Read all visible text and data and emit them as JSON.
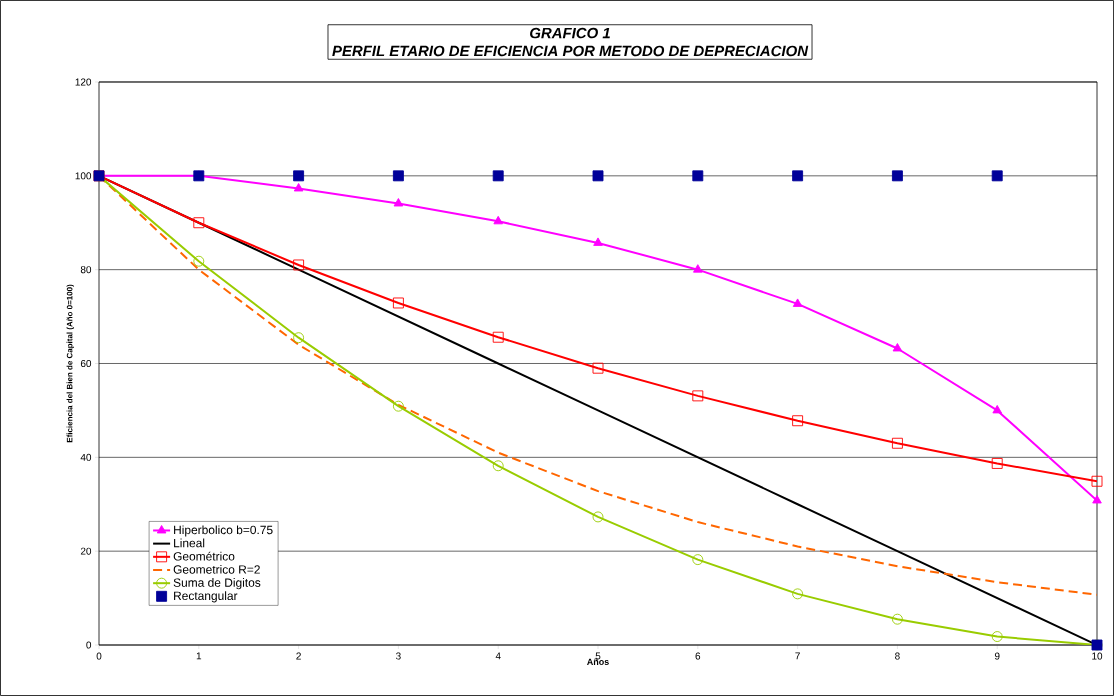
{
  "chart_data": {
    "type": "line",
    "title": "GRAFICO 1",
    "subtitle": "PERFIL ETARIO DE EFICIENCIA POR METODO DE DEPRECIACION",
    "xlabel": "Años",
    "ylabel": "Eficiencia del Bien de Capital (Año 0=100)",
    "x": [
      0,
      1,
      2,
      3,
      4,
      5,
      6,
      7,
      8,
      9,
      10
    ],
    "series": [
      {
        "name": "Hiperbolico b=0.75",
        "color": "#ff00ff",
        "marker": "triangle",
        "values": [
          100,
          100,
          97.3,
          94.1,
          90.3,
          85.7,
          80,
          72.7,
          63.2,
          50,
          30.8
        ]
      },
      {
        "name": "Lineal",
        "color": "#000000",
        "values": [
          100,
          90,
          80,
          70,
          60,
          50,
          40,
          30,
          20,
          10,
          0
        ]
      },
      {
        "name": "Geométrico",
        "color": "#ff0000",
        "marker": "square",
        "values": [
          100,
          90,
          81,
          72.9,
          65.6,
          59,
          53.1,
          47.8,
          43,
          38.7,
          34.9
        ]
      },
      {
        "name": "Geometrico R=2",
        "color": "#ff6600",
        "line_style": "dashed",
        "values": [
          100,
          80,
          64,
          51.2,
          41,
          32.8,
          26.2,
          21,
          16.8,
          13.4,
          10.7
        ]
      },
      {
        "name": "Suma de Digitos",
        "color": "#99cc00",
        "marker": "circle",
        "values": [
          100,
          81.8,
          65.5,
          50.9,
          38.2,
          27.3,
          18.2,
          10.9,
          5.5,
          1.8,
          0
        ]
      },
      {
        "name": "Rectangular",
        "type": "scatter",
        "color": "#000099",
        "marker": "square",
        "values": [
          100,
          100,
          100,
          100,
          100,
          100,
          100,
          100,
          100,
          100,
          0
        ]
      }
    ],
    "xlim": [
      0,
      10
    ],
    "xticks": [
      0,
      1,
      2,
      3,
      4,
      5,
      6,
      7,
      8,
      9,
      10
    ],
    "ylim": [
      0,
      120
    ],
    "yticks": [
      0,
      20,
      40,
      60,
      80,
      100,
      120
    ],
    "grid": "y",
    "legend": "bottom left"
  }
}
